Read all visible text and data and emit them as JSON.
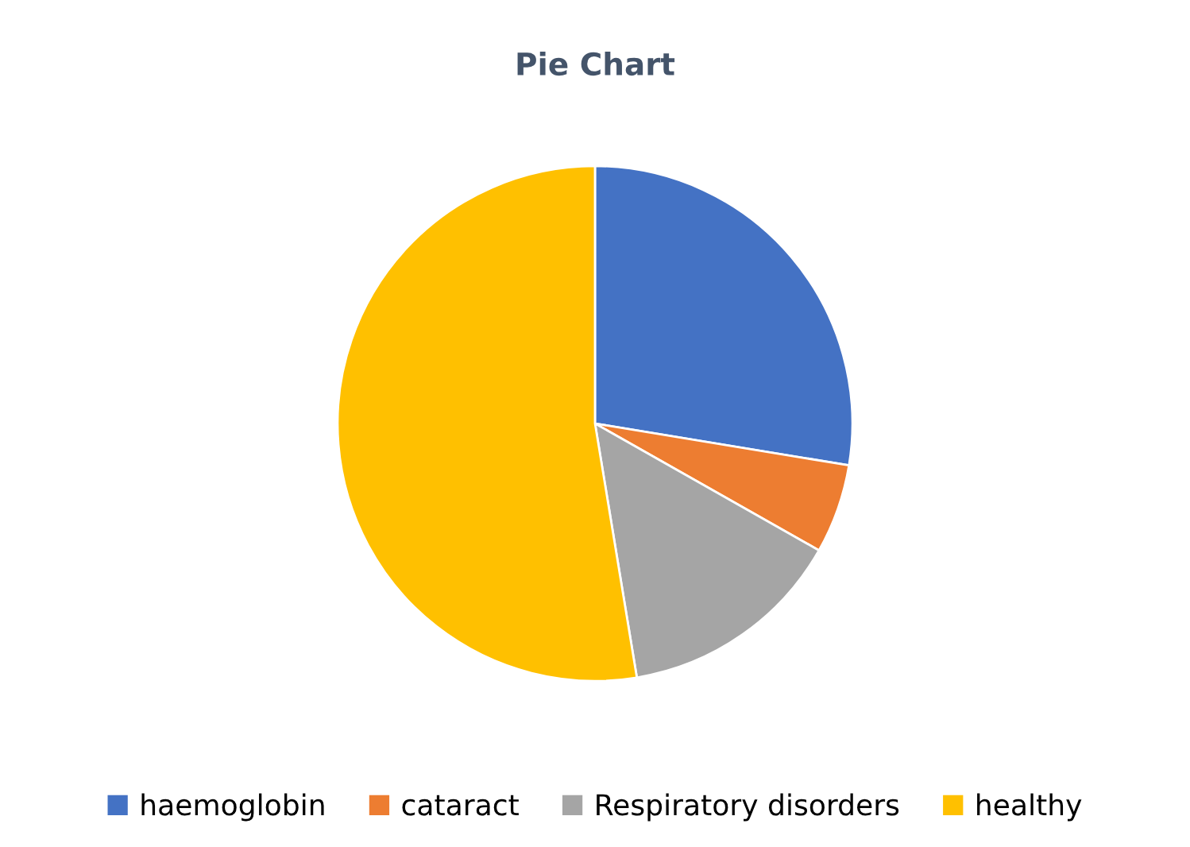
{
  "chart_data": {
    "type": "pie",
    "title": "Pie Chart",
    "categories": [
      "haemoglobin",
      "cataract",
      "Respiratory disorders",
      "healthy"
    ],
    "values": [
      27.6,
      5.6,
      14.2,
      52.6
    ],
    "colors": [
      "#4472c4",
      "#ed7d31",
      "#a5a5a5",
      "#ffc000"
    ],
    "legend": "bottom"
  }
}
